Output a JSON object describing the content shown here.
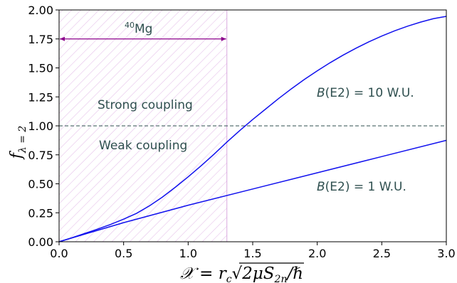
{
  "chart_data": {
    "type": "line",
    "xlim": [
      0.0,
      3.0
    ],
    "ylim": [
      0.0,
      2.0
    ],
    "x_ticks": [
      "0.0",
      "0.5",
      "1.0",
      "1.5",
      "2.0",
      "2.5",
      "3.0"
    ],
    "y_ticks": [
      "0.00",
      "0.25",
      "0.50",
      "0.75",
      "1.00",
      "1.25",
      "1.50",
      "1.75",
      "2.00"
    ],
    "xlabel": "𝒳 = r_c √(2μS_2n)/ℏ",
    "ylabel": "f_λ=2",
    "grid": false,
    "series": [
      {
        "name": "B(E2) = 10 W.U.",
        "color": "#1111ee",
        "x": [
          0.0,
          0.1,
          0.2,
          0.3,
          0.4,
          0.5,
          0.6,
          0.7,
          0.8,
          0.9,
          1.0,
          1.1,
          1.2,
          1.3,
          1.4,
          1.5,
          1.6,
          1.7,
          1.8,
          1.9,
          2.0,
          2.1,
          2.2,
          2.3,
          2.4,
          2.5,
          2.6,
          2.7,
          2.8,
          2.9,
          3.0
        ],
        "y": [
          0.0,
          0.035,
          0.072,
          0.11,
          0.15,
          0.195,
          0.245,
          0.31,
          0.385,
          0.47,
          0.56,
          0.655,
          0.755,
          0.86,
          0.96,
          1.055,
          1.145,
          1.235,
          1.32,
          1.4,
          1.475,
          1.545,
          1.61,
          1.67,
          1.725,
          1.775,
          1.82,
          1.86,
          1.895,
          1.925,
          1.945
        ]
      },
      {
        "name": "B(E2) = 1 W.U.",
        "color": "#1111ee",
        "x": [
          0.0,
          0.5,
          1.0,
          1.5,
          2.0,
          2.5,
          3.0
        ],
        "y": [
          0.0,
          0.165,
          0.315,
          0.455,
          0.595,
          0.735,
          0.875
        ]
      }
    ],
    "reference_line": {
      "y": 1.0,
      "style": "dashed",
      "color": "#2f4f4f"
    },
    "shaded_region": {
      "x0": 0.0,
      "x1": 1.3,
      "pattern": "hatched",
      "color": "#e6c3ea"
    },
    "arrow": {
      "x0": 0.0,
      "x1": 1.3,
      "y": 1.75,
      "color": "#8b008b"
    },
    "annotations": {
      "mg_mass": "40",
      "mg_symbol": "Mg",
      "strong": "Strong coupling",
      "weak": "Weak coupling",
      "be2_10_prefix": "B",
      "be2_10_suffix": "(E2) = 10 W.U.",
      "be2_1_prefix": "B",
      "be2_1_suffix": "(E2) = 1 W.U."
    }
  }
}
